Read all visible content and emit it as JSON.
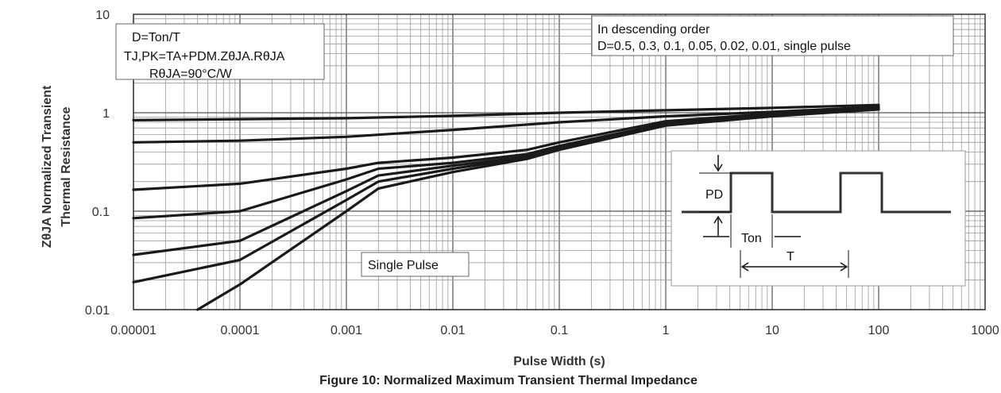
{
  "chart_data": {
    "type": "line",
    "title": "Figure 10: Normalized Maximum Transient Thermal Impedance",
    "xlabel": "Pulse Width (s)",
    "ylabel_line1": "ZθJA Normalized Transient",
    "ylabel_line2": "Thermal Resistance",
    "xscale": "log",
    "yscale": "log",
    "xlim": [
      1e-05,
      1000
    ],
    "ylim": [
      0.01,
      10
    ],
    "grid": true,
    "x_ticks": [
      "0.00001",
      "0.0001",
      "0.001",
      "0.01",
      "0.1",
      "1",
      "10",
      "100",
      "1000"
    ],
    "y_ticks": [
      "0.01",
      "0.1",
      "1",
      "10"
    ],
    "annotations": {
      "duty": "D=Ton/T",
      "tj_formula": "TJ,PK=TA+PDM.ZθJA.RθJA",
      "rthja": "RθJA=90°C/W",
      "order_title": "In descending order",
      "order_list": "D=0.5, 0.3, 0.1, 0.05, 0.02, 0.01, single pulse",
      "single_pulse": "Single Pulse",
      "inset_pd": "PD",
      "inset_ton": "Ton",
      "inset_t": "T"
    },
    "series": [
      {
        "x": [
          1e-05,
          0.0001,
          0.001,
          0.01,
          0.1,
          1,
          10,
          100
        ],
        "y": [
          0.84,
          0.86,
          0.88,
          0.93,
          1.0,
          1.06,
          1.12,
          1.2
        ]
      },
      {
        "x": [
          1e-05,
          0.0001,
          0.001,
          0.01,
          0.1,
          1,
          10,
          100
        ],
        "y": [
          0.5,
          0.52,
          0.57,
          0.67,
          0.8,
          0.92,
          1.02,
          1.15
        ]
      },
      {
        "x": [
          1e-05,
          0.0001,
          0.001,
          0.002,
          0.01,
          0.05,
          0.1,
          1,
          10,
          100
        ],
        "y": [
          0.165,
          0.19,
          0.27,
          0.31,
          0.35,
          0.42,
          0.5,
          0.82,
          0.98,
          1.12
        ]
      },
      {
        "x": [
          1e-05,
          0.0001,
          0.001,
          0.002,
          0.01,
          0.05,
          0.1,
          1,
          10,
          100
        ],
        "y": [
          0.085,
          0.1,
          0.21,
          0.27,
          0.31,
          0.38,
          0.46,
          0.78,
          0.95,
          1.1
        ]
      },
      {
        "x": [
          1e-05,
          0.0001,
          0.001,
          0.002,
          0.01,
          0.05,
          0.1,
          1,
          10,
          100
        ],
        "y": [
          0.036,
          0.05,
          0.16,
          0.23,
          0.29,
          0.36,
          0.44,
          0.76,
          0.94,
          1.09
        ]
      },
      {
        "x": [
          1e-05,
          0.0001,
          0.001,
          0.002,
          0.01,
          0.05,
          0.1,
          1,
          10,
          100
        ],
        "y": [
          0.019,
          0.032,
          0.13,
          0.2,
          0.27,
          0.35,
          0.43,
          0.75,
          0.93,
          1.09
        ]
      },
      {
        "x": [
          4e-05,
          0.0001,
          0.001,
          0.002,
          0.01,
          0.05,
          0.1,
          1,
          10,
          100
        ],
        "y": [
          0.01,
          0.018,
          0.1,
          0.17,
          0.25,
          0.34,
          0.42,
          0.74,
          0.92,
          1.08
        ]
      }
    ]
  }
}
